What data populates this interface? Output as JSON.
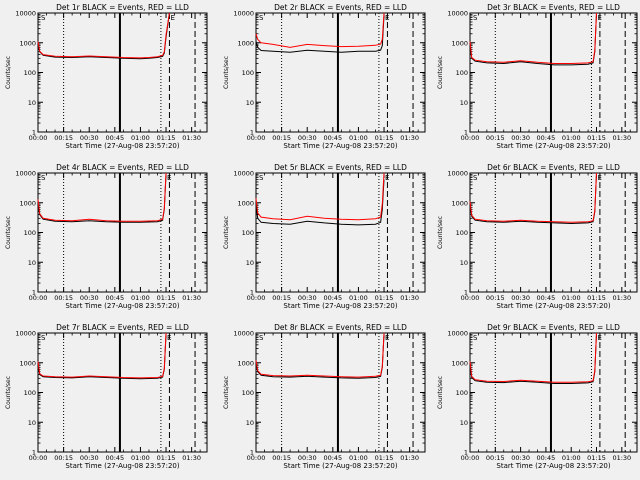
{
  "style": {
    "background": "#f0f0f0",
    "axis_color": "#000000",
    "events_color": "#000000",
    "lld_color": "#ff0000"
  },
  "common": {
    "xlabel": "Start Time (27-Aug-08 23:57:20)",
    "ylabel": "Counts/sec",
    "x_ticks": [
      "00:00",
      "00:15",
      "00:30",
      "00:45",
      "01:00",
      "01:15",
      "01:30"
    ],
    "x_tick_minutes": [
      0,
      15,
      30,
      45,
      60,
      75,
      90
    ],
    "y_ticks": [
      "1",
      "10",
      "100",
      "1000",
      "10000"
    ],
    "y_tick_values": [
      1,
      10,
      100,
      1000,
      10000
    ],
    "xlim_minutes": [
      0,
      99
    ],
    "ylim": [
      1,
      10000
    ],
    "yscale": "log",
    "marker_labels": [
      "S",
      "E"
    ]
  },
  "chart_data": [
    {
      "type": "line",
      "title": "Det 1r BLACK = Events, RED = LLD",
      "x": [
        0,
        1,
        3,
        10,
        20,
        30,
        40,
        50,
        60,
        65,
        70,
        73,
        74,
        75,
        77
      ],
      "series": [
        {
          "values": [
            1000,
            500,
            380,
            330,
            320,
            340,
            320,
            300,
            290,
            300,
            320,
            350,
            450,
            1500,
            10000
          ]
        },
        {
          "values": [
            1100,
            520,
            400,
            350,
            340,
            360,
            340,
            320,
            310,
            320,
            340,
            380,
            500,
            1800,
            12000
          ]
        }
      ],
      "solid_vline_min": 48,
      "dotted_vlines_min": [
        15,
        72
      ],
      "dashed_vlines_min": [
        77,
        92
      ]
    },
    {
      "type": "line",
      "title": "Det 2r BLACK = Events, RED = LLD",
      "x": [
        0,
        1,
        3,
        10,
        20,
        30,
        40,
        50,
        60,
        70,
        73,
        74,
        75
      ],
      "series": [
        {
          "values": [
            1100,
            700,
            550,
            520,
            480,
            560,
            520,
            480,
            520,
            520,
            560,
            800,
            8000
          ]
        },
        {
          "values": [
            2000,
            1300,
            1000,
            880,
            700,
            880,
            800,
            740,
            760,
            820,
            900,
            1300,
            12000
          ]
        }
      ],
      "solid_vline_min": 48,
      "dotted_vlines_min": [
        15,
        72
      ],
      "dashed_vlines_min": [
        77,
        92
      ]
    },
    {
      "type": "line",
      "title": "Det 3r BLACK = Events, RED = LLD",
      "x": [
        0,
        1,
        3,
        10,
        20,
        30,
        40,
        50,
        60,
        70,
        73,
        74,
        75
      ],
      "series": [
        {
          "values": [
            1000,
            300,
            240,
            210,
            200,
            230,
            200,
            180,
            180,
            190,
            210,
            500,
            12000
          ]
        },
        {
          "values": [
            1100,
            320,
            260,
            230,
            220,
            250,
            220,
            200,
            200,
            210,
            230,
            560,
            13000
          ]
        }
      ],
      "solid_vline_min": 48,
      "dotted_vlines_min": [
        15,
        72
      ],
      "dashed_vlines_min": [
        77,
        92
      ]
    },
    {
      "type": "line",
      "title": "Det 4r BLACK = Events, RED = LLD",
      "x": [
        0,
        1,
        3,
        10,
        20,
        30,
        40,
        50,
        60,
        70,
        73,
        74,
        75
      ],
      "series": [
        {
          "values": [
            1200,
            400,
            280,
            240,
            230,
            250,
            230,
            220,
            220,
            230,
            260,
            600,
            9000
          ]
        },
        {
          "values": [
            1300,
            430,
            300,
            260,
            250,
            280,
            250,
            240,
            240,
            250,
            280,
            650,
            10000
          ]
        }
      ],
      "solid_vline_min": 48,
      "dotted_vlines_min": [
        15,
        72
      ],
      "dashed_vlines_min": [
        77,
        92
      ]
    },
    {
      "type": "line",
      "title": "Det 5r BLACK = Events, RED = LLD",
      "x": [
        0,
        1,
        3,
        10,
        20,
        30,
        40,
        50,
        60,
        70,
        73,
        74,
        75
      ],
      "series": [
        {
          "values": [
            900,
            300,
            220,
            200,
            190,
            240,
            210,
            190,
            180,
            190,
            220,
            600,
            6000
          ]
        },
        {
          "values": [
            1400,
            450,
            330,
            290,
            270,
            350,
            300,
            280,
            270,
            290,
            330,
            900,
            10000
          ]
        }
      ],
      "solid_vline_min": 48,
      "dotted_vlines_min": [
        15,
        72
      ],
      "dashed_vlines_min": [
        77,
        92
      ]
    },
    {
      "type": "line",
      "title": "Det 6r BLACK = Events, RED = LLD",
      "x": [
        0,
        1,
        3,
        10,
        20,
        30,
        40,
        50,
        60,
        70,
        73,
        74,
        75
      ],
      "series": [
        {
          "values": [
            1000,
            350,
            260,
            230,
            220,
            240,
            220,
            210,
            200,
            210,
            230,
            500,
            10000
          ]
        },
        {
          "values": [
            1100,
            380,
            280,
            250,
            240,
            260,
            240,
            230,
            220,
            230,
            250,
            550,
            11000
          ]
        }
      ],
      "solid_vline_min": 48,
      "dotted_vlines_min": [
        15,
        72
      ],
      "dashed_vlines_min": [
        77,
        92
      ]
    },
    {
      "type": "line",
      "title": "Det 7r BLACK = Events, RED = LLD",
      "x": [
        0,
        1,
        3,
        10,
        20,
        30,
        40,
        50,
        60,
        70,
        73,
        74,
        75
      ],
      "series": [
        {
          "values": [
            1000,
            400,
            340,
            320,
            310,
            340,
            320,
            300,
            290,
            300,
            330,
            600,
            9000
          ]
        },
        {
          "values": [
            1100,
            430,
            360,
            340,
            330,
            360,
            340,
            320,
            310,
            320,
            350,
            650,
            10000
          ]
        }
      ],
      "solid_vline_min": 48,
      "dotted_vlines_min": [
        15,
        72
      ],
      "dashed_vlines_min": [
        77,
        92
      ]
    },
    {
      "type": "line",
      "title": "Det 8r BLACK = Events, RED = LLD",
      "x": [
        0,
        1,
        3,
        10,
        20,
        30,
        40,
        50,
        60,
        70,
        73,
        74,
        75
      ],
      "series": [
        {
          "values": [
            1100,
            500,
            380,
            340,
            330,
            350,
            330,
            310,
            300,
            320,
            350,
            700,
            9000
          ]
        },
        {
          "values": [
            1200,
            540,
            410,
            370,
            360,
            380,
            360,
            340,
            330,
            350,
            380,
            760,
            10000
          ]
        }
      ],
      "solid_vline_min": 48,
      "dotted_vlines_min": [
        15,
        72
      ],
      "dashed_vlines_min": [
        77,
        92
      ]
    },
    {
      "type": "line",
      "title": "Det 9r BLACK = Events, RED = LLD",
      "x": [
        0,
        1,
        3,
        10,
        20,
        30,
        40,
        50,
        60,
        70,
        73,
        74,
        75
      ],
      "series": [
        {
          "values": [
            1000,
            320,
            250,
            220,
            215,
            240,
            220,
            200,
            200,
            210,
            230,
            500,
            10000
          ]
        },
        {
          "values": [
            1100,
            350,
            270,
            240,
            235,
            260,
            240,
            220,
            220,
            230,
            250,
            550,
            11000
          ]
        }
      ],
      "solid_vline_min": 48,
      "dotted_vlines_min": [
        15,
        72
      ],
      "dashed_vlines_min": [
        77,
        92
      ]
    }
  ]
}
